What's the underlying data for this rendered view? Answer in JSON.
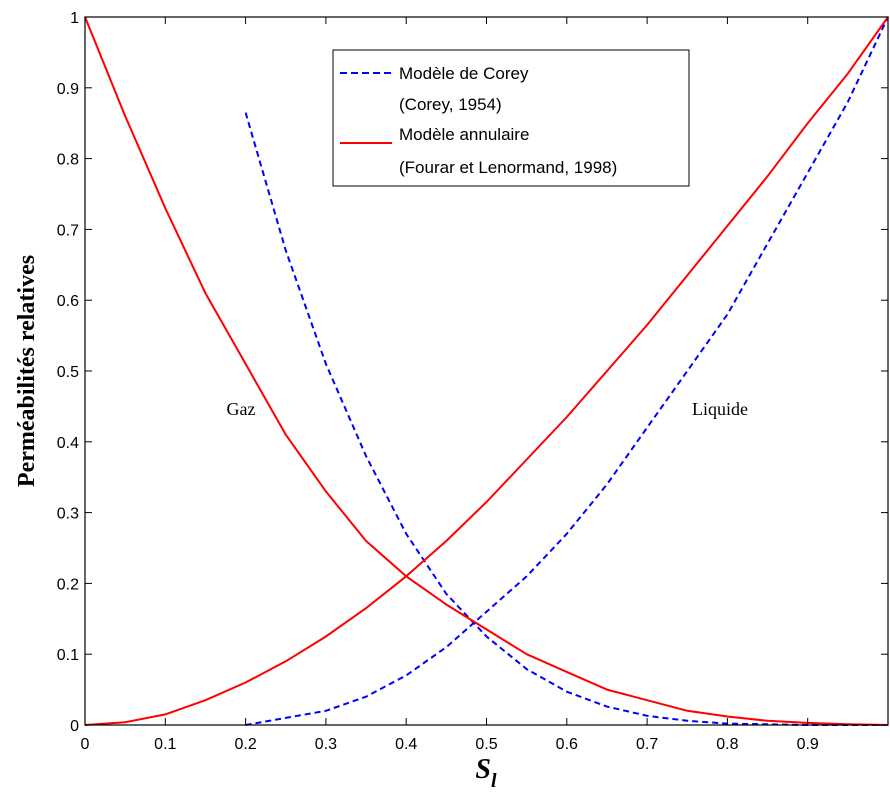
{
  "chart_data": {
    "type": "line",
    "xlabel": "S",
    "xlabel_subscript": "l",
    "ylabel": "Perméabilités relatives",
    "xlim": [
      0,
      1
    ],
    "ylim": [
      0,
      1
    ],
    "x_ticks": [
      "0",
      "0.1",
      "0.2",
      "0.3",
      "0.4",
      "0.5",
      "0.6",
      "0.7",
      "0.8",
      "0.9"
    ],
    "y_ticks": [
      "0",
      "0.1",
      "0.2",
      "0.3",
      "0.4",
      "0.5",
      "0.6",
      "0.7",
      "0.8",
      "0.9",
      "1"
    ],
    "grid": false,
    "legend_position": "top-center",
    "legend": [
      {
        "lines": [
          "Modèle de Corey",
          "(Corey, 1954)"
        ],
        "color": "#0000ff",
        "style": "dashed"
      },
      {
        "lines": [
          "Modèle annulaire",
          "(Fourar et Lenormand, 1998)"
        ],
        "color": "#ff0000",
        "style": "solid"
      }
    ],
    "annotations": [
      {
        "text": "Gaz",
        "x": 0.22,
        "y": 0.44
      },
      {
        "text": "Liquide",
        "x": 0.79,
        "y": 0.44
      }
    ],
    "series": [
      {
        "model": "corey",
        "phase": "gas",
        "color": "#0000ff",
        "style": "dashed",
        "x": [
          0.2,
          0.25,
          0.3,
          0.35,
          0.4,
          0.45,
          0.5,
          0.55,
          0.6,
          0.65,
          0.7,
          0.75,
          0.8,
          0.85,
          0.9,
          0.95,
          1.0
        ],
        "y": [
          0.865,
          0.67,
          0.51,
          0.38,
          0.27,
          0.185,
          0.125,
          0.079,
          0.047,
          0.026,
          0.013,
          0.006,
          0.002,
          0.001,
          0.0,
          0.0,
          0.0
        ]
      },
      {
        "model": "corey",
        "phase": "liquid",
        "color": "#0000ff",
        "style": "dashed",
        "x": [
          0.2,
          0.25,
          0.3,
          0.35,
          0.4,
          0.45,
          0.5,
          0.55,
          0.6,
          0.65,
          0.7,
          0.75,
          0.8,
          0.85,
          0.9,
          0.95,
          1.0
        ],
        "y": [
          0.0,
          0.01,
          0.02,
          0.04,
          0.07,
          0.11,
          0.16,
          0.21,
          0.27,
          0.34,
          0.42,
          0.5,
          0.58,
          0.68,
          0.78,
          0.88,
          1.0
        ]
      },
      {
        "model": "annulaire",
        "phase": "gas",
        "color": "#ff0000",
        "style": "solid",
        "x": [
          0.0,
          0.05,
          0.1,
          0.15,
          0.2,
          0.25,
          0.3,
          0.35,
          0.4,
          0.45,
          0.5,
          0.55,
          0.6,
          0.65,
          0.7,
          0.75,
          0.8,
          0.85,
          0.9,
          0.95,
          1.0
        ],
        "y": [
          1.0,
          0.86,
          0.73,
          0.61,
          0.51,
          0.41,
          0.33,
          0.26,
          0.21,
          0.17,
          0.135,
          0.1,
          0.075,
          0.05,
          0.035,
          0.02,
          0.012,
          0.006,
          0.003,
          0.001,
          0.0
        ]
      },
      {
        "model": "annulaire",
        "phase": "liquid",
        "color": "#ff0000",
        "style": "solid",
        "x": [
          0.0,
          0.05,
          0.1,
          0.15,
          0.2,
          0.25,
          0.3,
          0.35,
          0.4,
          0.45,
          0.5,
          0.55,
          0.6,
          0.65,
          0.7,
          0.75,
          0.8,
          0.85,
          0.9,
          0.95,
          1.0
        ],
        "y": [
          0.0,
          0.004,
          0.015,
          0.035,
          0.06,
          0.09,
          0.125,
          0.165,
          0.21,
          0.26,
          0.315,
          0.375,
          0.435,
          0.5,
          0.565,
          0.635,
          0.705,
          0.775,
          0.85,
          0.92,
          1.0
        ]
      }
    ]
  }
}
